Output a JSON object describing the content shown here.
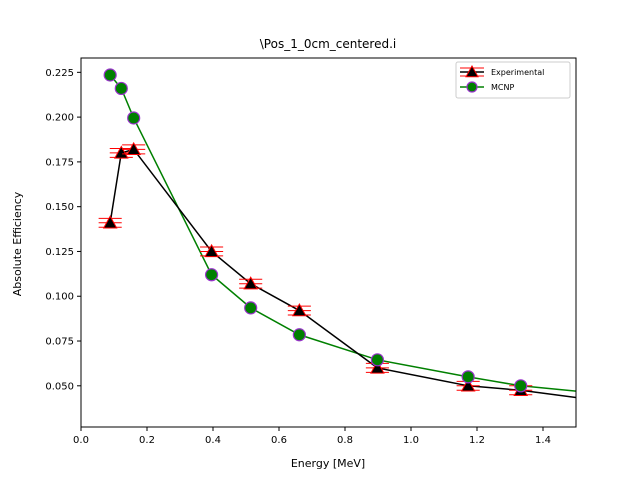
{
  "chart_data": {
    "type": "line",
    "title": "\\Pos_1_0cm_centered.i",
    "xlabel": "Energy [MeV]",
    "ylabel": "Absolute Efficiency",
    "xlim": [
      0.0,
      1.5
    ],
    "ylim": [
      0.027,
      0.233
    ],
    "x_ticks": [
      0.0,
      0.2,
      0.4,
      0.6,
      0.8,
      1.0,
      1.2,
      1.4
    ],
    "x_tick_labels": [
      "0.0",
      "0.2",
      "0.4",
      "0.6",
      "0.8",
      "1.0",
      "1.2",
      "1.4"
    ],
    "y_ticks": [
      0.05,
      0.075,
      0.1,
      0.125,
      0.15,
      0.175,
      0.2,
      0.225
    ],
    "y_tick_labels": [
      "0.050",
      "0.075",
      "0.100",
      "0.125",
      "0.150",
      "0.175",
      "0.200",
      "0.225"
    ],
    "grid": false,
    "legend_position": "top-right",
    "series": [
      {
        "name": "Experimental",
        "color": "#000000",
        "marker": "triangle",
        "marker_face": "#000000",
        "marker_edge": "#ff0000",
        "errorbar_color": "#ff0000",
        "x": [
          0.0884,
          0.1221,
          0.1596,
          0.3957,
          0.5142,
          0.6617,
          0.8982,
          1.1732,
          1.3325,
          1.5
        ],
        "y": [
          0.141,
          0.18,
          0.182,
          0.125,
          0.107,
          0.092,
          0.06,
          0.05,
          0.0475,
          0.0435
        ],
        "xerr": [
          0.035,
          0.035,
          0.035,
          0.035,
          0.035,
          0.035,
          0.035,
          0.035,
          0.035,
          0
        ],
        "yerr": [
          0.0025,
          0.0025,
          0.0025,
          0.0025,
          0.0025,
          0.0025,
          0.0025,
          0.0025,
          0.0025,
          0
        ]
      },
      {
        "name": "MCNP",
        "color": "#008000",
        "marker": "circle",
        "marker_face": "#008000",
        "marker_edge": "#9932cc",
        "x": [
          0.0884,
          0.1221,
          0.1596,
          0.3957,
          0.5142,
          0.6617,
          0.8982,
          1.1732,
          1.3325,
          1.5
        ],
        "y": [
          0.2235,
          0.216,
          0.1995,
          0.112,
          0.0935,
          0.0785,
          0.0645,
          0.055,
          0.05,
          0.047
        ]
      }
    ]
  }
}
